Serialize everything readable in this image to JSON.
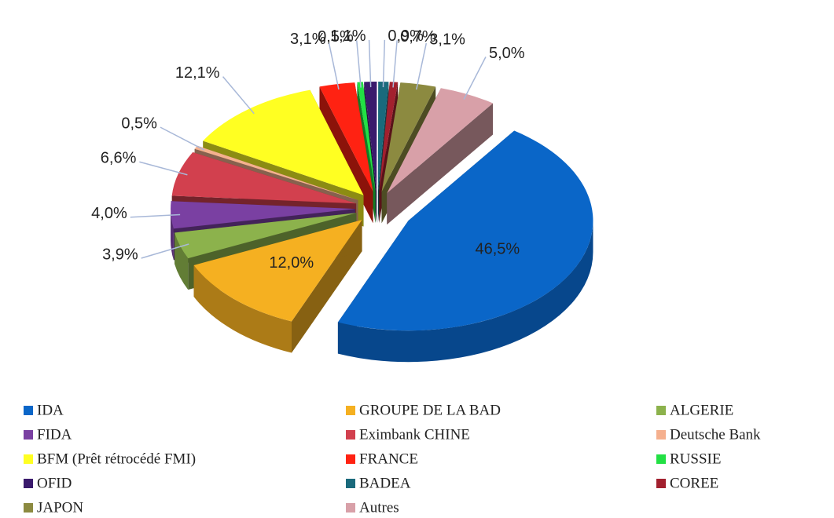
{
  "chart_data": {
    "type": "pie",
    "labels": [
      "IDA",
      "GROUPE DE LA BAD",
      "ALGERIE",
      "FIDA",
      "Eximbank CHINE",
      "Deutsche Bank",
      "BFM (Prêt rétrocédé FMI)",
      "FRANCE",
      "RUSSIE",
      "OFID",
      "BADEA",
      "COREE",
      "JAPON",
      "Autres"
    ],
    "values": [
      46.5,
      12.0,
      3.9,
      4.0,
      6.6,
      0.5,
      12.1,
      3.1,
      0.5,
      1.1,
      0.9,
      0.7,
      3.1,
      5.0
    ],
    "value_labels": [
      "46,5%",
      "12,0%",
      "3,9%",
      "4,0%",
      "6,6%",
      "0,5%",
      "12,1%",
      "3,1%",
      "0,5%",
      "1,1%",
      "0,9%",
      "0,7%",
      "3,1%",
      "5,0%"
    ],
    "colors": [
      "#0a66c8",
      "#f5b021",
      "#8cb24c",
      "#7a40a2",
      "#d2404e",
      "#f5b08e",
      "#ffff22",
      "#ff2212",
      "#22e044",
      "#3a1a6c",
      "#1a6a7c",
      "#a2202e",
      "#8c8a40",
      "#d8a0a8"
    ],
    "legend": "bottom"
  }
}
